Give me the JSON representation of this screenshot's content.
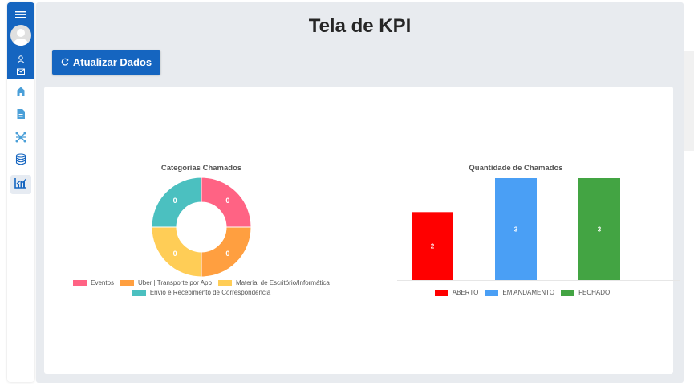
{
  "header": {
    "title": "Tela de KPI"
  },
  "toolbar": {
    "refresh_label": "Atualizar Dados",
    "refresh_icon": "refresh-icon"
  },
  "sidebar": {
    "items": [
      {
        "name": "home",
        "icon": "home-icon",
        "color": "#4a9fd8"
      },
      {
        "name": "document",
        "icon": "document-icon",
        "color": "#4a9fd8"
      },
      {
        "name": "network",
        "icon": "network-icon",
        "color": "#4a9fd8"
      },
      {
        "name": "database",
        "icon": "database-icon",
        "color": "#1565c0"
      },
      {
        "name": "kpi",
        "icon": "chart-line-icon",
        "color": "#1565c0",
        "active": true
      }
    ]
  },
  "colors": {
    "accent": "#1565c0",
    "eventos": "#ff6384",
    "uber": "#ff9f40",
    "material": "#ffcd56",
    "envio": "#4bc0c0",
    "aberto": "#ff0000",
    "em_andamento": "#4a9ff5",
    "fechado": "#43a443"
  },
  "chart_data": [
    {
      "type": "pie",
      "variant": "doughnut",
      "title": "Categorias Chamados",
      "categories": [
        "Eventos",
        "Uber | Transporte por App",
        "Material de Escritório/Informática",
        "Envio e Recebimento de Correspondência"
      ],
      "values": [
        0,
        0,
        0,
        0
      ],
      "slice_labels": [
        "0",
        "0",
        "0",
        "0"
      ],
      "colors": [
        "#ff6384",
        "#ff9f40",
        "#ffcd56",
        "#4bc0c0"
      ],
      "legend": "bottom"
    },
    {
      "type": "bar",
      "title": "Quantidade de Chamados",
      "categories": [
        "ABERTO",
        "EM ANDAMENTO",
        "FECHADO"
      ],
      "values": [
        2,
        3,
        3
      ],
      "colors": [
        "#ff0000",
        "#4a9ff5",
        "#43a443"
      ],
      "ylim": [
        0,
        3
      ],
      "grid": false,
      "legend": "bottom"
    }
  ]
}
